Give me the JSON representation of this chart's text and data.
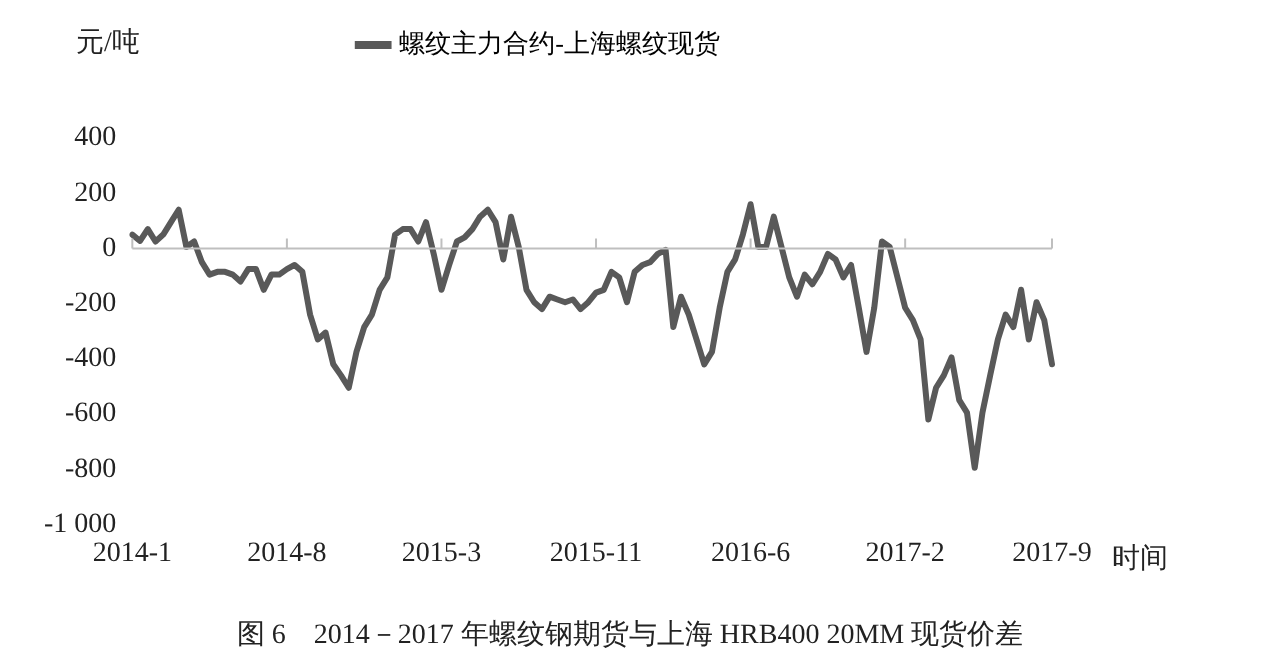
{
  "chart_data": {
    "type": "line",
    "xlabel": "时间",
    "ylabel": "元/吨",
    "categories": [
      "2014-1",
      null,
      null,
      null,
      null,
      null,
      null,
      null,
      null,
      null,
      null,
      null,
      null,
      null,
      null,
      null,
      null,
      null,
      null,
      null,
      "2014-8",
      null,
      null,
      null,
      null,
      null,
      null,
      null,
      null,
      null,
      null,
      null,
      null,
      null,
      null,
      null,
      null,
      null,
      null,
      null,
      "2015-3",
      null,
      null,
      null,
      null,
      null,
      null,
      null,
      null,
      null,
      null,
      null,
      null,
      null,
      null,
      null,
      null,
      null,
      null,
      null,
      "2015-11",
      null,
      null,
      null,
      null,
      null,
      null,
      null,
      null,
      null,
      null,
      null,
      null,
      null,
      null,
      null,
      null,
      null,
      null,
      null,
      "2016-6",
      null,
      null,
      null,
      null,
      null,
      null,
      null,
      null,
      null,
      null,
      null,
      null,
      null,
      null,
      null,
      null,
      null,
      null,
      null,
      "2017-2",
      null,
      null,
      null,
      null,
      null,
      null,
      null,
      null,
      null,
      null,
      null,
      null,
      null,
      null,
      null,
      null,
      null,
      null,
      "2017-9"
    ],
    "series": [
      {
        "name": "螺纹主力合约-上海螺纹现货",
        "color": "#595959",
        "values": [
          50,
          27,
          70,
          25,
          50,
          95,
          140,
          5,
          25,
          -50,
          -95,
          -85,
          -85,
          -95,
          -120,
          -75,
          -75,
          -150,
          -95,
          -95,
          -75,
          -60,
          -85,
          -240,
          -330,
          -305,
          -420,
          -460,
          -505,
          -375,
          -285,
          -240,
          -150,
          -105,
          50,
          70,
          70,
          25,
          95,
          -20,
          -150,
          -60,
          25,
          40,
          70,
          115,
          140,
          95,
          -40,
          115,
          5,
          -150,
          -195,
          -220,
          -175,
          -185,
          -195,
          -185,
          -220,
          -195,
          -160,
          -150,
          -85,
          -105,
          -195,
          -85,
          -60,
          -50,
          -20,
          -5,
          -285,
          -175,
          -240,
          -330,
          -420,
          -375,
          -215,
          -85,
          -40,
          50,
          160,
          5,
          5,
          115,
          5,
          -105,
          -175,
          -95,
          -130,
          -85,
          -20,
          -40,
          -105,
          -60,
          -215,
          -375,
          -215,
          25,
          5,
          -105,
          -215,
          -260,
          -330,
          -620,
          -505,
          -460,
          -395,
          -550,
          -595,
          -795,
          -595,
          -460,
          -330,
          -240,
          -285,
          -150,
          -330,
          -195,
          -260,
          -420
        ]
      }
    ],
    "ylim": [
      -1000,
      400
    ],
    "yticks": [
      {
        "value": -1000,
        "label": "-1 000"
      },
      -800,
      -600,
      -400,
      -200,
      0,
      200,
      400
    ],
    "grid": false,
    "ref_lines": [
      {
        "axis": "y",
        "value": 0,
        "color": "#bfbfbf"
      }
    ],
    "legend": "top",
    "marker": "none",
    "line_style": "solid",
    "annotations": [
      "图 6　2014－2017 年螺纹钢期货与上海 HRB400 20MM 现货价差"
    ]
  }
}
